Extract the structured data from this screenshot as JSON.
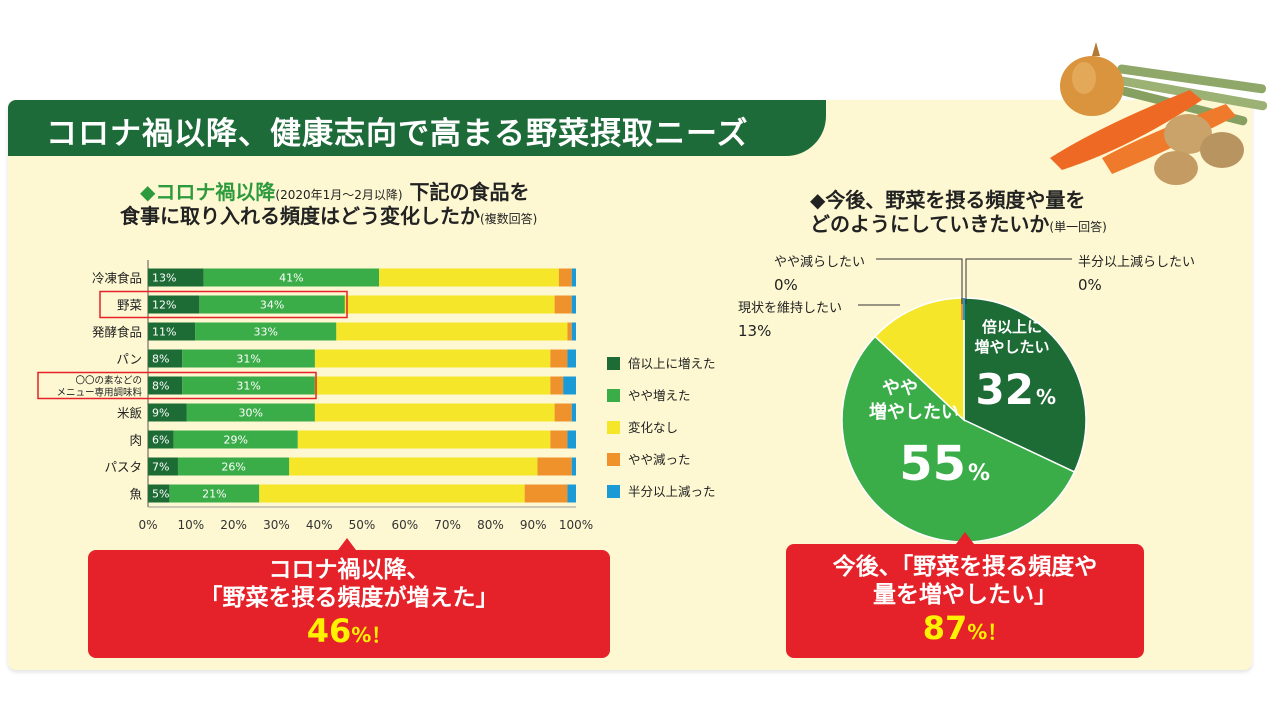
{
  "header": {
    "title": "コロナ禍以降、健康志向で高まる野菜摂取ニーズ"
  },
  "left_chart": {
    "subtitle_line1_main": "◆コロナ禍以降",
    "subtitle_line1_note": "(2020年1月～2月以降)",
    "subtitle_line1_tail": "下記の食品を",
    "subtitle_line2_main": "食事に取り入れる頻度はどう変化したか",
    "subtitle_line2_note": "(複数回答)"
  },
  "right_chart": {
    "subtitle_line1": "◆今後、野菜を摂る頻度や量を",
    "subtitle_line2_main": "どのようにしていきたいか",
    "subtitle_line2_note": "(単一回答)"
  },
  "callout_left": {
    "line1": "コロナ禍以降、",
    "line2": "「野菜を摂る頻度が増えた」",
    "value": "46",
    "suffix": "%！"
  },
  "callout_right": {
    "line1": "今後、「野菜を摂る頻度や",
    "line2": "量を増やしたい」",
    "value": "87",
    "suffix": "%！"
  },
  "colors": {
    "dark_green": "#1d6b35",
    "green": "#3aad48",
    "yellow": "#f5e62a",
    "orange": "#f0922c",
    "blue": "#1c9ad6",
    "red": "#e52229"
  },
  "chart_data": [
    {
      "type": "bar",
      "orientation": "horizontal-stacked",
      "categories": [
        "冷凍食品",
        "野菜",
        "発酵食品",
        "パン",
        "〇〇の素などの\nメニュー専用調味料",
        "米飯",
        "肉",
        "パスタ",
        "魚"
      ],
      "highlighted": [
        "野菜",
        "〇〇の素などの\nメニュー専用調味料"
      ],
      "series": [
        {
          "name": "倍以上に増えた",
          "color": "#1d6b35",
          "values": [
            13,
            12,
            11,
            8,
            8,
            9,
            6,
            7,
            5
          ]
        },
        {
          "name": "やや増えた",
          "color": "#3aad48",
          "values": [
            41,
            34,
            33,
            31,
            31,
            30,
            29,
            26,
            21
          ]
        },
        {
          "name": "変化なし",
          "color": "#f5e62a",
          "values": [
            42,
            49,
            54,
            55,
            55,
            56,
            59,
            58,
            62
          ]
        },
        {
          "name": "やや減った",
          "color": "#f0922c",
          "values": [
            3,
            4,
            1,
            4,
            3,
            4,
            4,
            8,
            10
          ]
        },
        {
          "name": "半分以上減った",
          "color": "#1c9ad6",
          "values": [
            1,
            1,
            1,
            2,
            3,
            1,
            2,
            1,
            2
          ]
        }
      ],
      "labeled_series": [
        "倍以上に増えた",
        "やや増えた"
      ],
      "xlim": [
        0,
        100
      ],
      "xticks": [
        "0%",
        "10%",
        "20%",
        "30%",
        "40%",
        "50%",
        "60%",
        "70%",
        "80%",
        "90%",
        "100%"
      ],
      "legend_position": "right"
    },
    {
      "type": "pie",
      "slices": [
        {
          "name": "倍以上に増やしたい",
          "label_line1": "倍以上に",
          "label_line2": "増やしたい",
          "value": 32,
          "value_text": "32",
          "color": "#1d6b35"
        },
        {
          "name": "やや増やしたい",
          "label_line1": "やや",
          "label_line2": "増やしたい",
          "value": 55,
          "value_text": "55",
          "color": "#3aad48"
        },
        {
          "name": "現状を維持したい",
          "label_line1": "現状を維持したい",
          "value": 13,
          "value_text": "13",
          "color": "#f5e62a"
        },
        {
          "name": "やや減らしたい",
          "label_line1": "やや減らしたい",
          "value": 0,
          "value_text": "0",
          "color": "#f0922c"
        },
        {
          "name": "半分以上減らしたい",
          "label_line1": "半分以上減らしたい",
          "value": 0,
          "value_text": "0",
          "color": "#1c9ad6"
        }
      ]
    }
  ]
}
